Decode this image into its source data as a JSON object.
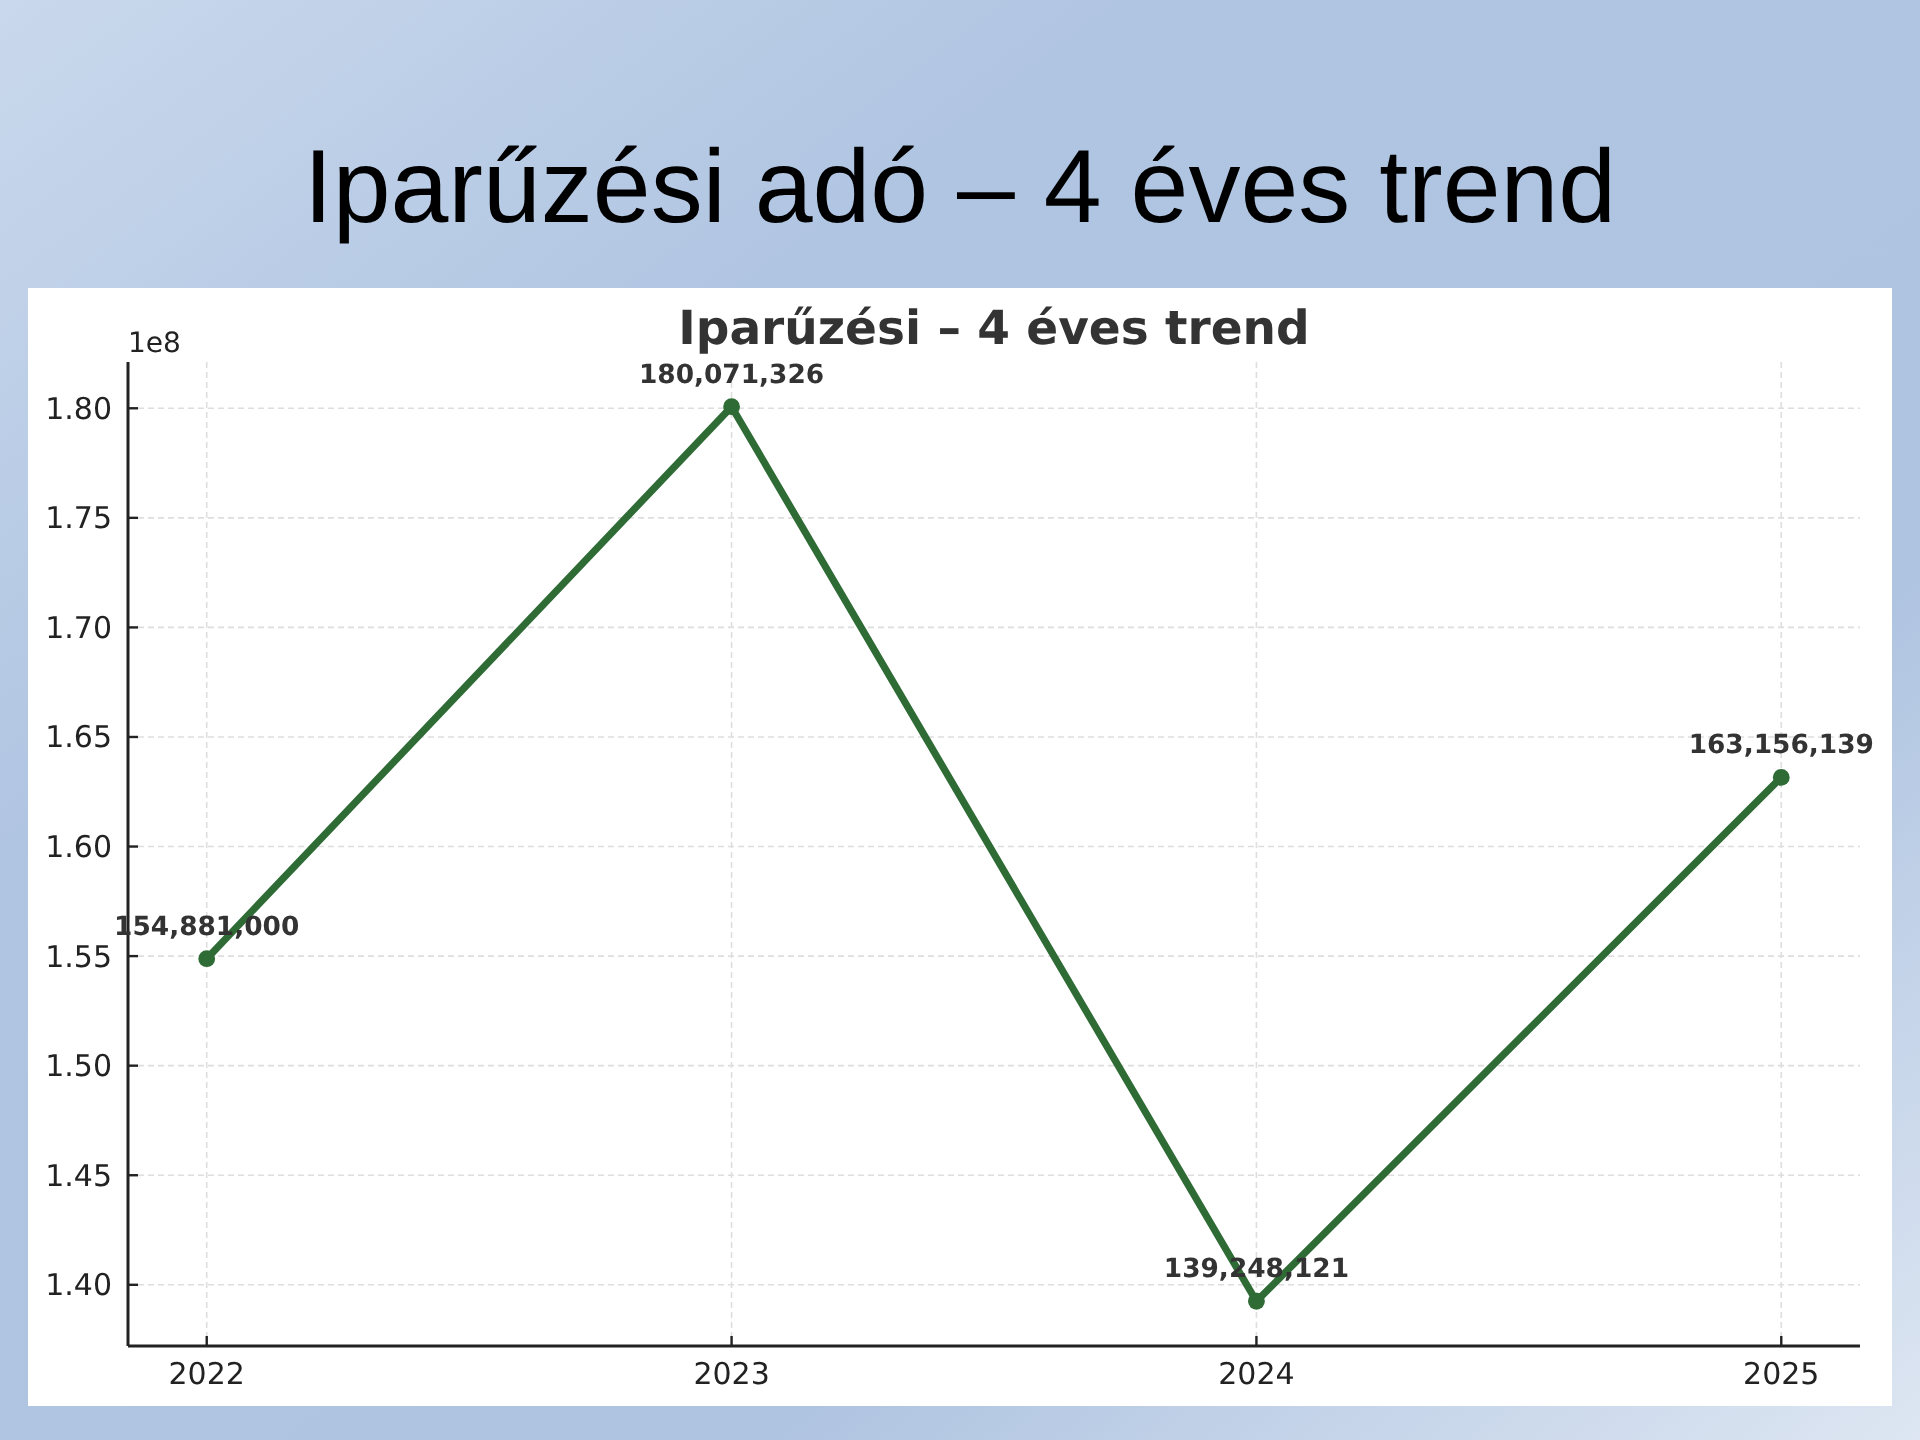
{
  "chart_data": {
    "type": "line",
    "title": "Iparűzési adó – 4 éves trend",
    "subtitle": "Iparűzési – 4 éves trend",
    "annotations": [
      "1e8",
      {
        "text": "154,881,000",
        "x": 2022,
        "y": 1.54881
      },
      {
        "text": "180,071,326",
        "x": 2023,
        "y": 1.80071326
      },
      {
        "text": "139,248,121",
        "x": 2024,
        "y": 1.39248121
      },
      {
        "text": "163,156,139",
        "x": 2025,
        "y": 1.63156139
      }
    ],
    "x": [
      2022,
      2023,
      2024,
      2025
    ],
    "values": [
      1.54881,
      1.80071326,
      1.39248121,
      1.63156139
    ],
    "color": "#2e6b35",
    "xlim": [
      2021.85,
      2025.15
    ],
    "xticks": [
      2022,
      2023,
      2024,
      2025
    ],
    "ylim": [
      1.37207,
      1.82112
    ],
    "yticks": [
      {
        "value": 1.4,
        "label": "1.40"
      },
      {
        "value": 1.45,
        "label": "1.45"
      },
      {
        "value": 1.5,
        "label": "1.50"
      },
      {
        "value": 1.55,
        "label": "1.55"
      },
      {
        "value": 1.6,
        "label": "1.60"
      },
      {
        "value": 1.65,
        "label": "1.65"
      },
      {
        "value": 1.7,
        "label": "1.70"
      },
      {
        "value": 1.75,
        "label": "1.75"
      },
      {
        "value": 1.8,
        "label": "1.80"
      }
    ],
    "grid": true,
    "marker": "circle",
    "line_style": "solid"
  }
}
